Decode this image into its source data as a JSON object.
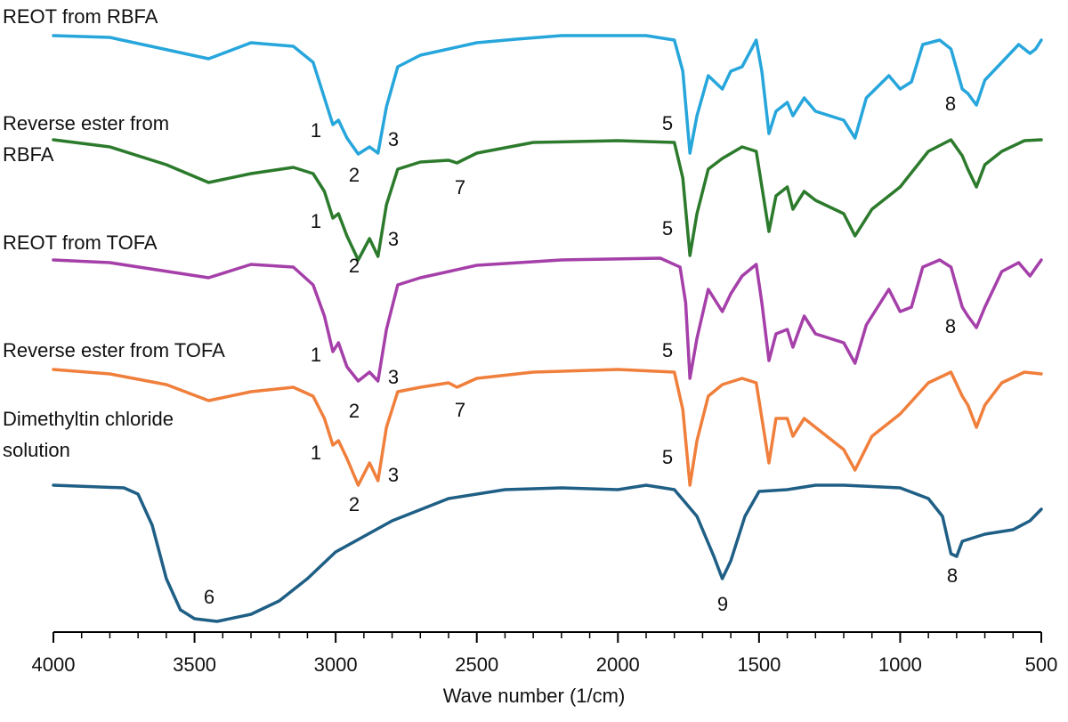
{
  "chart_data": {
    "type": "line",
    "xlabel": "Wave number (1/cm)",
    "xlim": [
      4000,
      500
    ],
    "xticks": [
      4000,
      3500,
      3000,
      2500,
      2000,
      1500,
      1000,
      500
    ],
    "xminorticks": [
      3900,
      3800,
      3700,
      3600,
      3400,
      3300,
      3200,
      3100,
      2900,
      2800,
      2700,
      2600,
      2400,
      2300,
      2200,
      2100,
      1900,
      1800,
      1700,
      1600,
      1400,
      1300,
      1200,
      1100,
      900,
      800,
      700,
      600
    ],
    "ylim": [
      0,
      68
    ],
    "series": [
      {
        "name": "REOT from RBFA",
        "color": "#27a6dc",
        "x": [
          4000,
          3800,
          3450,
          3300,
          3150,
          3080,
          3040,
          3010,
          2990,
          2960,
          2920,
          2880,
          2850,
          2820,
          2780,
          2700,
          2500,
          2360,
          2200,
          1900,
          1800,
          1770,
          1745,
          1720,
          1680,
          1630,
          1600,
          1560,
          1510,
          1490,
          1465,
          1440,
          1400,
          1380,
          1340,
          1300,
          1200,
          1160,
          1120,
          1040,
          1000,
          960,
          920,
          860,
          820,
          780,
          760,
          730,
          700,
          640,
          580,
          540,
          520,
          500
        ],
        "values": [
          67,
          66.8,
          64.4,
          66.2,
          65.8,
          64,
          60,
          57,
          57.5,
          55.5,
          53.7,
          54.5,
          53.8,
          59,
          63.5,
          64.8,
          66.2,
          66.6,
          67,
          67,
          66.5,
          63,
          53.8,
          58,
          62.5,
          61,
          63,
          63.5,
          66.5,
          63,
          56,
          58.5,
          59.5,
          58,
          60,
          58.5,
          57.5,
          55.5,
          60,
          62.5,
          61,
          61.8,
          66,
          66.5,
          65.5,
          61,
          60.5,
          59.2,
          62,
          64,
          66,
          65,
          65.5,
          66.5
        ],
        "annotations": [
          "1",
          "2",
          "3",
          "5",
          "8"
        ]
      },
      {
        "name": "Reverse ester from RBFA",
        "color": "#2c7a2c",
        "x": [
          4000,
          3800,
          3600,
          3450,
          3300,
          3150,
          3080,
          3040,
          3010,
          2990,
          2960,
          2920,
          2880,
          2850,
          2820,
          2780,
          2700,
          2600,
          2570,
          2500,
          2300,
          2000,
          1800,
          1770,
          1745,
          1720,
          1680,
          1630,
          1560,
          1510,
          1465,
          1440,
          1400,
          1380,
          1340,
          1300,
          1200,
          1160,
          1100,
          1000,
          900,
          820,
          780,
          760,
          730,
          700,
          640,
          560,
          500
        ],
        "values": [
          55.3,
          54.5,
          52.5,
          50.5,
          51.5,
          52.2,
          51.5,
          49.5,
          46.5,
          47,
          44.5,
          41.8,
          44.2,
          42.2,
          48,
          52,
          52.8,
          53,
          52.7,
          53.8,
          55,
          55.2,
          55,
          51,
          42.3,
          47,
          52,
          53.2,
          54.5,
          54,
          45,
          49,
          50,
          47.5,
          49.5,
          48.5,
          47,
          44.5,
          47.5,
          50,
          54,
          55.3,
          53.5,
          52,
          50,
          52.5,
          54,
          55.2,
          55.3
        ],
        "annotations": [
          "1",
          "2",
          "3",
          "7",
          "5"
        ]
      },
      {
        "name": "REOT from TOFA",
        "color": "#a53fa9",
        "x": [
          4000,
          3800,
          3450,
          3300,
          3150,
          3080,
          3040,
          3010,
          2990,
          2960,
          2920,
          2880,
          2850,
          2820,
          2780,
          2700,
          2500,
          2200,
          1850,
          1780,
          1760,
          1745,
          1720,
          1680,
          1630,
          1600,
          1560,
          1510,
          1490,
          1465,
          1440,
          1400,
          1380,
          1340,
          1300,
          1200,
          1160,
          1120,
          1040,
          1000,
          960,
          920,
          860,
          820,
          780,
          760,
          730,
          700,
          640,
          580,
          540,
          500
        ],
        "values": [
          41.8,
          41.5,
          39.8,
          41.3,
          41,
          39,
          35.5,
          31.5,
          32.5,
          29.8,
          28.2,
          29.2,
          28.2,
          34,
          39,
          39.8,
          41.2,
          41.8,
          42,
          41,
          37,
          28.5,
          33,
          38.5,
          36,
          38,
          40,
          41.3,
          37,
          30.5,
          33.5,
          34,
          32,
          35.5,
          33.5,
          32.5,
          30.2,
          34.5,
          38.5,
          36,
          36.5,
          41,
          41.8,
          41,
          36.5,
          35.5,
          34.2,
          36.5,
          40.5,
          41.5,
          40,
          41.8
        ],
        "annotations": [
          "1",
          "2",
          "3",
          "5",
          "8"
        ]
      },
      {
        "name": "Reverse ester from TOFA",
        "color": "#f07f3c",
        "x": [
          4000,
          3800,
          3600,
          3450,
          3300,
          3150,
          3080,
          3040,
          3010,
          2990,
          2960,
          2920,
          2880,
          2850,
          2820,
          2780,
          2700,
          2600,
          2570,
          2500,
          2300,
          2000,
          1800,
          1770,
          1745,
          1720,
          1680,
          1630,
          1560,
          1510,
          1465,
          1440,
          1400,
          1380,
          1340,
          1300,
          1200,
          1160,
          1100,
          1000,
          900,
          820,
          780,
          760,
          730,
          700,
          640,
          560,
          500
        ],
        "values": [
          29.5,
          29,
          27.8,
          26,
          27,
          27.5,
          26.5,
          24,
          21,
          21.5,
          19.5,
          16.5,
          19,
          17,
          23,
          27,
          27.5,
          28,
          27.5,
          28.5,
          29.2,
          29.5,
          29.2,
          25,
          16.5,
          21.5,
          26.5,
          27.8,
          28.5,
          28,
          19,
          24,
          24,
          22,
          24,
          23,
          20.5,
          18.2,
          22,
          24.5,
          28,
          29.2,
          26.5,
          25.5,
          23,
          25.5,
          28,
          29.2,
          29
        ],
        "annotations": [
          "1",
          "2",
          "3",
          "7",
          "5"
        ]
      },
      {
        "name": "Dimethyltin chloride solution",
        "color": "#1f5f86",
        "x": [
          4000,
          3750,
          3700,
          3650,
          3600,
          3550,
          3500,
          3420,
          3300,
          3200,
          3100,
          3000,
          2800,
          2600,
          2400,
          2200,
          2000,
          1900,
          1800,
          1720,
          1660,
          1630,
          1600,
          1550,
          1500,
          1400,
          1300,
          1200,
          1000,
          900,
          850,
          820,
          800,
          780,
          700,
          600,
          540,
          500
        ],
        "values": [
          16.5,
          16.2,
          15.5,
          12,
          6,
          2.5,
          1.5,
          1.2,
          2,
          3.5,
          6,
          9,
          12.5,
          15,
          16,
          16.2,
          16,
          16.5,
          16,
          13,
          8.5,
          6,
          8,
          13,
          15.8,
          16,
          16.5,
          16.5,
          16.2,
          15,
          13,
          8.8,
          8.5,
          10.2,
          11,
          11.5,
          12.5,
          13.8
        ],
        "annotations": [
          "6",
          "9",
          "8"
        ]
      }
    ]
  }
}
